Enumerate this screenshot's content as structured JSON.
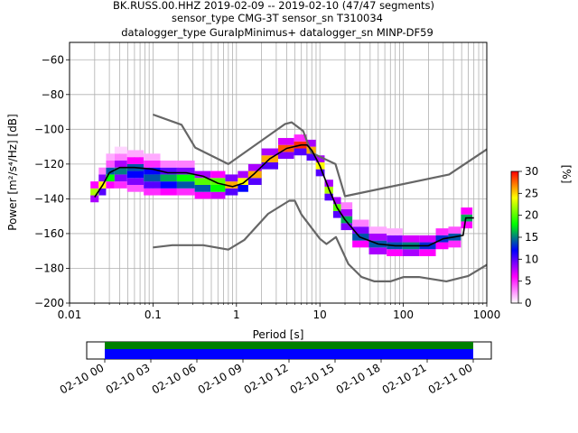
{
  "chart_data": {
    "type": "heatmap",
    "title_lines": [
      "BK.RUSS.00.HHZ   2019-02-09 -- 2019-02-10  (47/47 segments)",
      "sensor_type CMG-3T sensor_sn T310034",
      "datalogger_type GuralpMinimus+ datalogger_sn MINP-DF59"
    ],
    "xlabel": "Period [s]",
    "ylabel": "Power [m²/s⁴/Hz] [dB]",
    "x_scale": "log",
    "xlim": [
      0.01,
      1000
    ],
    "ylim": [
      -200,
      -50
    ],
    "x_ticks": [
      {
        "value": 0.01,
        "label": "0.01"
      },
      {
        "value": 0.1,
        "label": "0.1"
      },
      {
        "value": 1,
        "label": "1"
      },
      {
        "value": 10,
        "label": "10"
      },
      {
        "value": 100,
        "label": "100"
      },
      {
        "value": 1000,
        "label": "1000"
      }
    ],
    "y_ticks": [
      {
        "value": -60,
        "label": "−60"
      },
      {
        "value": -80,
        "label": "−80"
      },
      {
        "value": -100,
        "label": "−100"
      },
      {
        "value": -120,
        "label": "−120"
      },
      {
        "value": -140,
        "label": "−140"
      },
      {
        "value": -160,
        "label": "−160"
      },
      {
        "value": -180,
        "label": "−180"
      },
      {
        "value": -200,
        "label": "−200"
      }
    ],
    "grid": true,
    "colorbar": {
      "label": "[%]",
      "range": [
        0,
        30
      ],
      "ticks": [
        {
          "value": 0,
          "label": "0"
        },
        {
          "value": 5,
          "label": "5"
        },
        {
          "value": 10,
          "label": "10"
        },
        {
          "value": 15,
          "label": "15"
        },
        {
          "value": 20,
          "label": "20"
        },
        {
          "value": 25,
          "label": "25"
        },
        {
          "value": 30,
          "label": "30"
        }
      ],
      "stops": [
        "#ffffff",
        "#ff00ff",
        "#0000ff",
        "#00ff00",
        "#ffff00",
        "#ff0000"
      ]
    },
    "noise_model_high": [
      [
        0.1,
        -91.5
      ],
      [
        0.22,
        -97.4
      ],
      [
        0.32,
        -110.5
      ],
      [
        0.8,
        -120
      ],
      [
        3.8,
        -97
      ],
      [
        4.6,
        -96
      ],
      [
        6.3,
        -101
      ],
      [
        7.9,
        -113.5
      ],
      [
        15.4,
        -120
      ],
      [
        20,
        -138.5
      ],
      [
        354,
        -126
      ],
      [
        1000,
        -111.5
      ]
    ],
    "noise_model_low": [
      [
        0.1,
        -168
      ],
      [
        0.17,
        -166.7
      ],
      [
        0.4,
        -166.7
      ],
      [
        0.8,
        -169.2
      ],
      [
        1.24,
        -163.7
      ],
      [
        2.4,
        -148.6
      ],
      [
        4.3,
        -141.1
      ],
      [
        5,
        -141.1
      ],
      [
        6,
        -149
      ],
      [
        10,
        -163
      ],
      [
        12,
        -166
      ],
      [
        15.6,
        -162
      ],
      [
        21.9,
        -177.5
      ],
      [
        31.6,
        -185
      ],
      [
        45,
        -187.5
      ],
      [
        70,
        -187.5
      ],
      [
        101,
        -185
      ],
      [
        154,
        -185
      ],
      [
        328,
        -187.5
      ],
      [
        600,
        -184.4
      ],
      [
        1000,
        -178
      ]
    ],
    "median": [
      [
        0.02,
        -139
      ],
      [
        0.025,
        -132
      ],
      [
        0.03,
        -125
      ],
      [
        0.04,
        -122
      ],
      [
        0.06,
        -122
      ],
      [
        0.1,
        -123
      ],
      [
        0.15,
        -125
      ],
      [
        0.25,
        -125
      ],
      [
        0.4,
        -127
      ],
      [
        0.6,
        -131
      ],
      [
        0.9,
        -133
      ],
      [
        1.2,
        -131
      ],
      [
        1.6,
        -126
      ],
      [
        2.5,
        -117
      ],
      [
        4,
        -111
      ],
      [
        6,
        -109
      ],
      [
        7,
        -109
      ],
      [
        8,
        -112
      ],
      [
        10,
        -121
      ],
      [
        13,
        -135
      ],
      [
        16,
        -145
      ],
      [
        20,
        -152
      ],
      [
        30,
        -162
      ],
      [
        50,
        -166
      ],
      [
        80,
        -167
      ],
      [
        120,
        -167
      ],
      [
        200,
        -167
      ],
      [
        300,
        -163
      ],
      [
        400,
        -162
      ],
      [
        520,
        -161
      ],
      [
        560,
        -151
      ],
      [
        700,
        -151
      ]
    ],
    "psd_cells": [
      {
        "period": 0.02,
        "power": -140,
        "percent": 8
      },
      {
        "period": 0.02,
        "power": -136,
        "percent": 22
      },
      {
        "period": 0.02,
        "power": -132,
        "percent": 6
      },
      {
        "period": 0.025,
        "power": -136,
        "percent": 10
      },
      {
        "period": 0.025,
        "power": -132,
        "percent": 24
      },
      {
        "period": 0.025,
        "power": -128,
        "percent": 9
      },
      {
        "period": 0.025,
        "power": -124,
        "percent": 3
      },
      {
        "period": 0.03,
        "power": -132,
        "percent": 6
      },
      {
        "period": 0.03,
        "power": -128,
        "percent": 18
      },
      {
        "period": 0.03,
        "power": -124,
        "percent": 14
      },
      {
        "period": 0.03,
        "power": -120,
        "percent": 4
      },
      {
        "period": 0.03,
        "power": -116,
        "percent": 2
      },
      {
        "period": 0.04,
        "power": -132,
        "percent": 5
      },
      {
        "period": 0.04,
        "power": -128,
        "percent": 9
      },
      {
        "period": 0.04,
        "power": -124,
        "percent": 15
      },
      {
        "period": 0.04,
        "power": -120,
        "percent": 8
      },
      {
        "period": 0.04,
        "power": -116,
        "percent": 3
      },
      {
        "period": 0.04,
        "power": -112,
        "percent": 1
      },
      {
        "period": 0.06,
        "power": -134,
        "percent": 4
      },
      {
        "period": 0.06,
        "power": -130,
        "percent": 9
      },
      {
        "period": 0.06,
        "power": -126,
        "percent": 12
      },
      {
        "period": 0.06,
        "power": -122,
        "percent": 14
      },
      {
        "period": 0.06,
        "power": -118,
        "percent": 6
      },
      {
        "period": 0.06,
        "power": -114,
        "percent": 2
      },
      {
        "period": 0.1,
        "power": -136,
        "percent": 5
      },
      {
        "period": 0.1,
        "power": -132,
        "percent": 10
      },
      {
        "period": 0.1,
        "power": -128,
        "percent": 14
      },
      {
        "period": 0.1,
        "power": -124,
        "percent": 12
      },
      {
        "period": 0.1,
        "power": -120,
        "percent": 5
      },
      {
        "period": 0.1,
        "power": -116,
        "percent": 2
      },
      {
        "period": 0.15,
        "power": -136,
        "percent": 6
      },
      {
        "period": 0.15,
        "power": -132,
        "percent": 12
      },
      {
        "period": 0.15,
        "power": -128,
        "percent": 16
      },
      {
        "period": 0.15,
        "power": -124,
        "percent": 10
      },
      {
        "period": 0.15,
        "power": -120,
        "percent": 3
      },
      {
        "period": 0.25,
        "power": -136,
        "percent": 5
      },
      {
        "period": 0.25,
        "power": -132,
        "percent": 14
      },
      {
        "period": 0.25,
        "power": -128,
        "percent": 18
      },
      {
        "period": 0.25,
        "power": -124,
        "percent": 9
      },
      {
        "period": 0.25,
        "power": -120,
        "percent": 3
      },
      {
        "period": 0.4,
        "power": -138,
        "percent": 6
      },
      {
        "period": 0.4,
        "power": -134,
        "percent": 14
      },
      {
        "period": 0.4,
        "power": -130,
        "percent": 20
      },
      {
        "period": 0.4,
        "power": -126,
        "percent": 8
      },
      {
        "period": 0.6,
        "power": -138,
        "percent": 7
      },
      {
        "period": 0.6,
        "power": -134,
        "percent": 18
      },
      {
        "period": 0.6,
        "power": -130,
        "percent": 20
      },
      {
        "period": 0.6,
        "power": -126,
        "percent": 6
      },
      {
        "period": 0.9,
        "power": -136,
        "percent": 10
      },
      {
        "period": 0.9,
        "power": -132,
        "percent": 26
      },
      {
        "period": 0.9,
        "power": -128,
        "percent": 9
      },
      {
        "period": 1.2,
        "power": -134,
        "percent": 12
      },
      {
        "period": 1.2,
        "power": -130,
        "percent": 24
      },
      {
        "period": 1.2,
        "power": -126,
        "percent": 8
      },
      {
        "period": 1.6,
        "power": -130,
        "percent": 10
      },
      {
        "period": 1.6,
        "power": -126,
        "percent": 26
      },
      {
        "period": 1.6,
        "power": -122,
        "percent": 8
      },
      {
        "period": 2.5,
        "power": -121,
        "percent": 10
      },
      {
        "period": 2.5,
        "power": -117,
        "percent": 26
      },
      {
        "period": 2.5,
        "power": -113,
        "percent": 8
      },
      {
        "period": 4,
        "power": -115,
        "percent": 9
      },
      {
        "period": 4,
        "power": -111,
        "percent": 28
      },
      {
        "period": 4,
        "power": -107,
        "percent": 7
      },
      {
        "period": 6,
        "power": -113,
        "percent": 10
      },
      {
        "period": 6,
        "power": -109,
        "percent": 29
      },
      {
        "period": 6,
        "power": -105,
        "percent": 5
      },
      {
        "period": 8,
        "power": -116,
        "percent": 10
      },
      {
        "period": 8,
        "power": -112,
        "percent": 26
      },
      {
        "period": 8,
        "power": -108,
        "percent": 8
      },
      {
        "period": 10,
        "power": -125,
        "percent": 10
      },
      {
        "period": 10,
        "power": -121,
        "percent": 24
      },
      {
        "period": 10,
        "power": -117,
        "percent": 8
      },
      {
        "period": 13,
        "power": -139,
        "percent": 10
      },
      {
        "period": 13,
        "power": -135,
        "percent": 22
      },
      {
        "period": 13,
        "power": -131,
        "percent": 8
      },
      {
        "period": 16,
        "power": -149,
        "percent": 10
      },
      {
        "period": 16,
        "power": -145,
        "percent": 20
      },
      {
        "period": 16,
        "power": -141,
        "percent": 8
      },
      {
        "period": 20,
        "power": -156,
        "percent": 9
      },
      {
        "period": 20,
        "power": -152,
        "percent": 16
      },
      {
        "period": 20,
        "power": -148,
        "percent": 8
      },
      {
        "period": 20,
        "power": -144,
        "percent": 3
      },
      {
        "period": 30,
        "power": -166,
        "percent": 6
      },
      {
        "period": 30,
        "power": -162,
        "percent": 14
      },
      {
        "period": 30,
        "power": -158,
        "percent": 9
      },
      {
        "period": 30,
        "power": -154,
        "percent": 3
      },
      {
        "period": 50,
        "power": -170,
        "percent": 8
      },
      {
        "period": 50,
        "power": -166,
        "percent": 14
      },
      {
        "period": 50,
        "power": -162,
        "percent": 8
      },
      {
        "period": 50,
        "power": -158,
        "percent": 2
      },
      {
        "period": 80,
        "power": -171,
        "percent": 6
      },
      {
        "period": 80,
        "power": -167,
        "percent": 14
      },
      {
        "period": 80,
        "power": -163,
        "percent": 9
      },
      {
        "period": 80,
        "power": -159,
        "percent": 2
      },
      {
        "period": 120,
        "power": -171,
        "percent": 8
      },
      {
        "period": 120,
        "power": -167,
        "percent": 15
      },
      {
        "period": 120,
        "power": -163,
        "percent": 7
      },
      {
        "period": 200,
        "power": -171,
        "percent": 6
      },
      {
        "period": 200,
        "power": -167,
        "percent": 13
      },
      {
        "period": 200,
        "power": -163,
        "percent": 7
      },
      {
        "period": 300,
        "power": -167,
        "percent": 6
      },
      {
        "period": 300,
        "power": -163,
        "percent": 13
      },
      {
        "period": 300,
        "power": -159,
        "percent": 5
      },
      {
        "period": 400,
        "power": -166,
        "percent": 5
      },
      {
        "period": 400,
        "power": -162,
        "percent": 14
      },
      {
        "period": 400,
        "power": -158,
        "percent": 4
      },
      {
        "period": 600,
        "power": -155,
        "percent": 6
      },
      {
        "period": 600,
        "power": -151,
        "percent": 16
      },
      {
        "period": 600,
        "power": -147,
        "percent": 6
      }
    ],
    "timeline": {
      "tick_labels": [
        "02-10 00",
        "02-10 03",
        "02-10 06",
        "02-10 09",
        "02-10 12",
        "02-10 15",
        "02-10 18",
        "02-10 21",
        "02-11 00"
      ],
      "band_colors": [
        "#008000",
        "#0000ff"
      ]
    }
  }
}
